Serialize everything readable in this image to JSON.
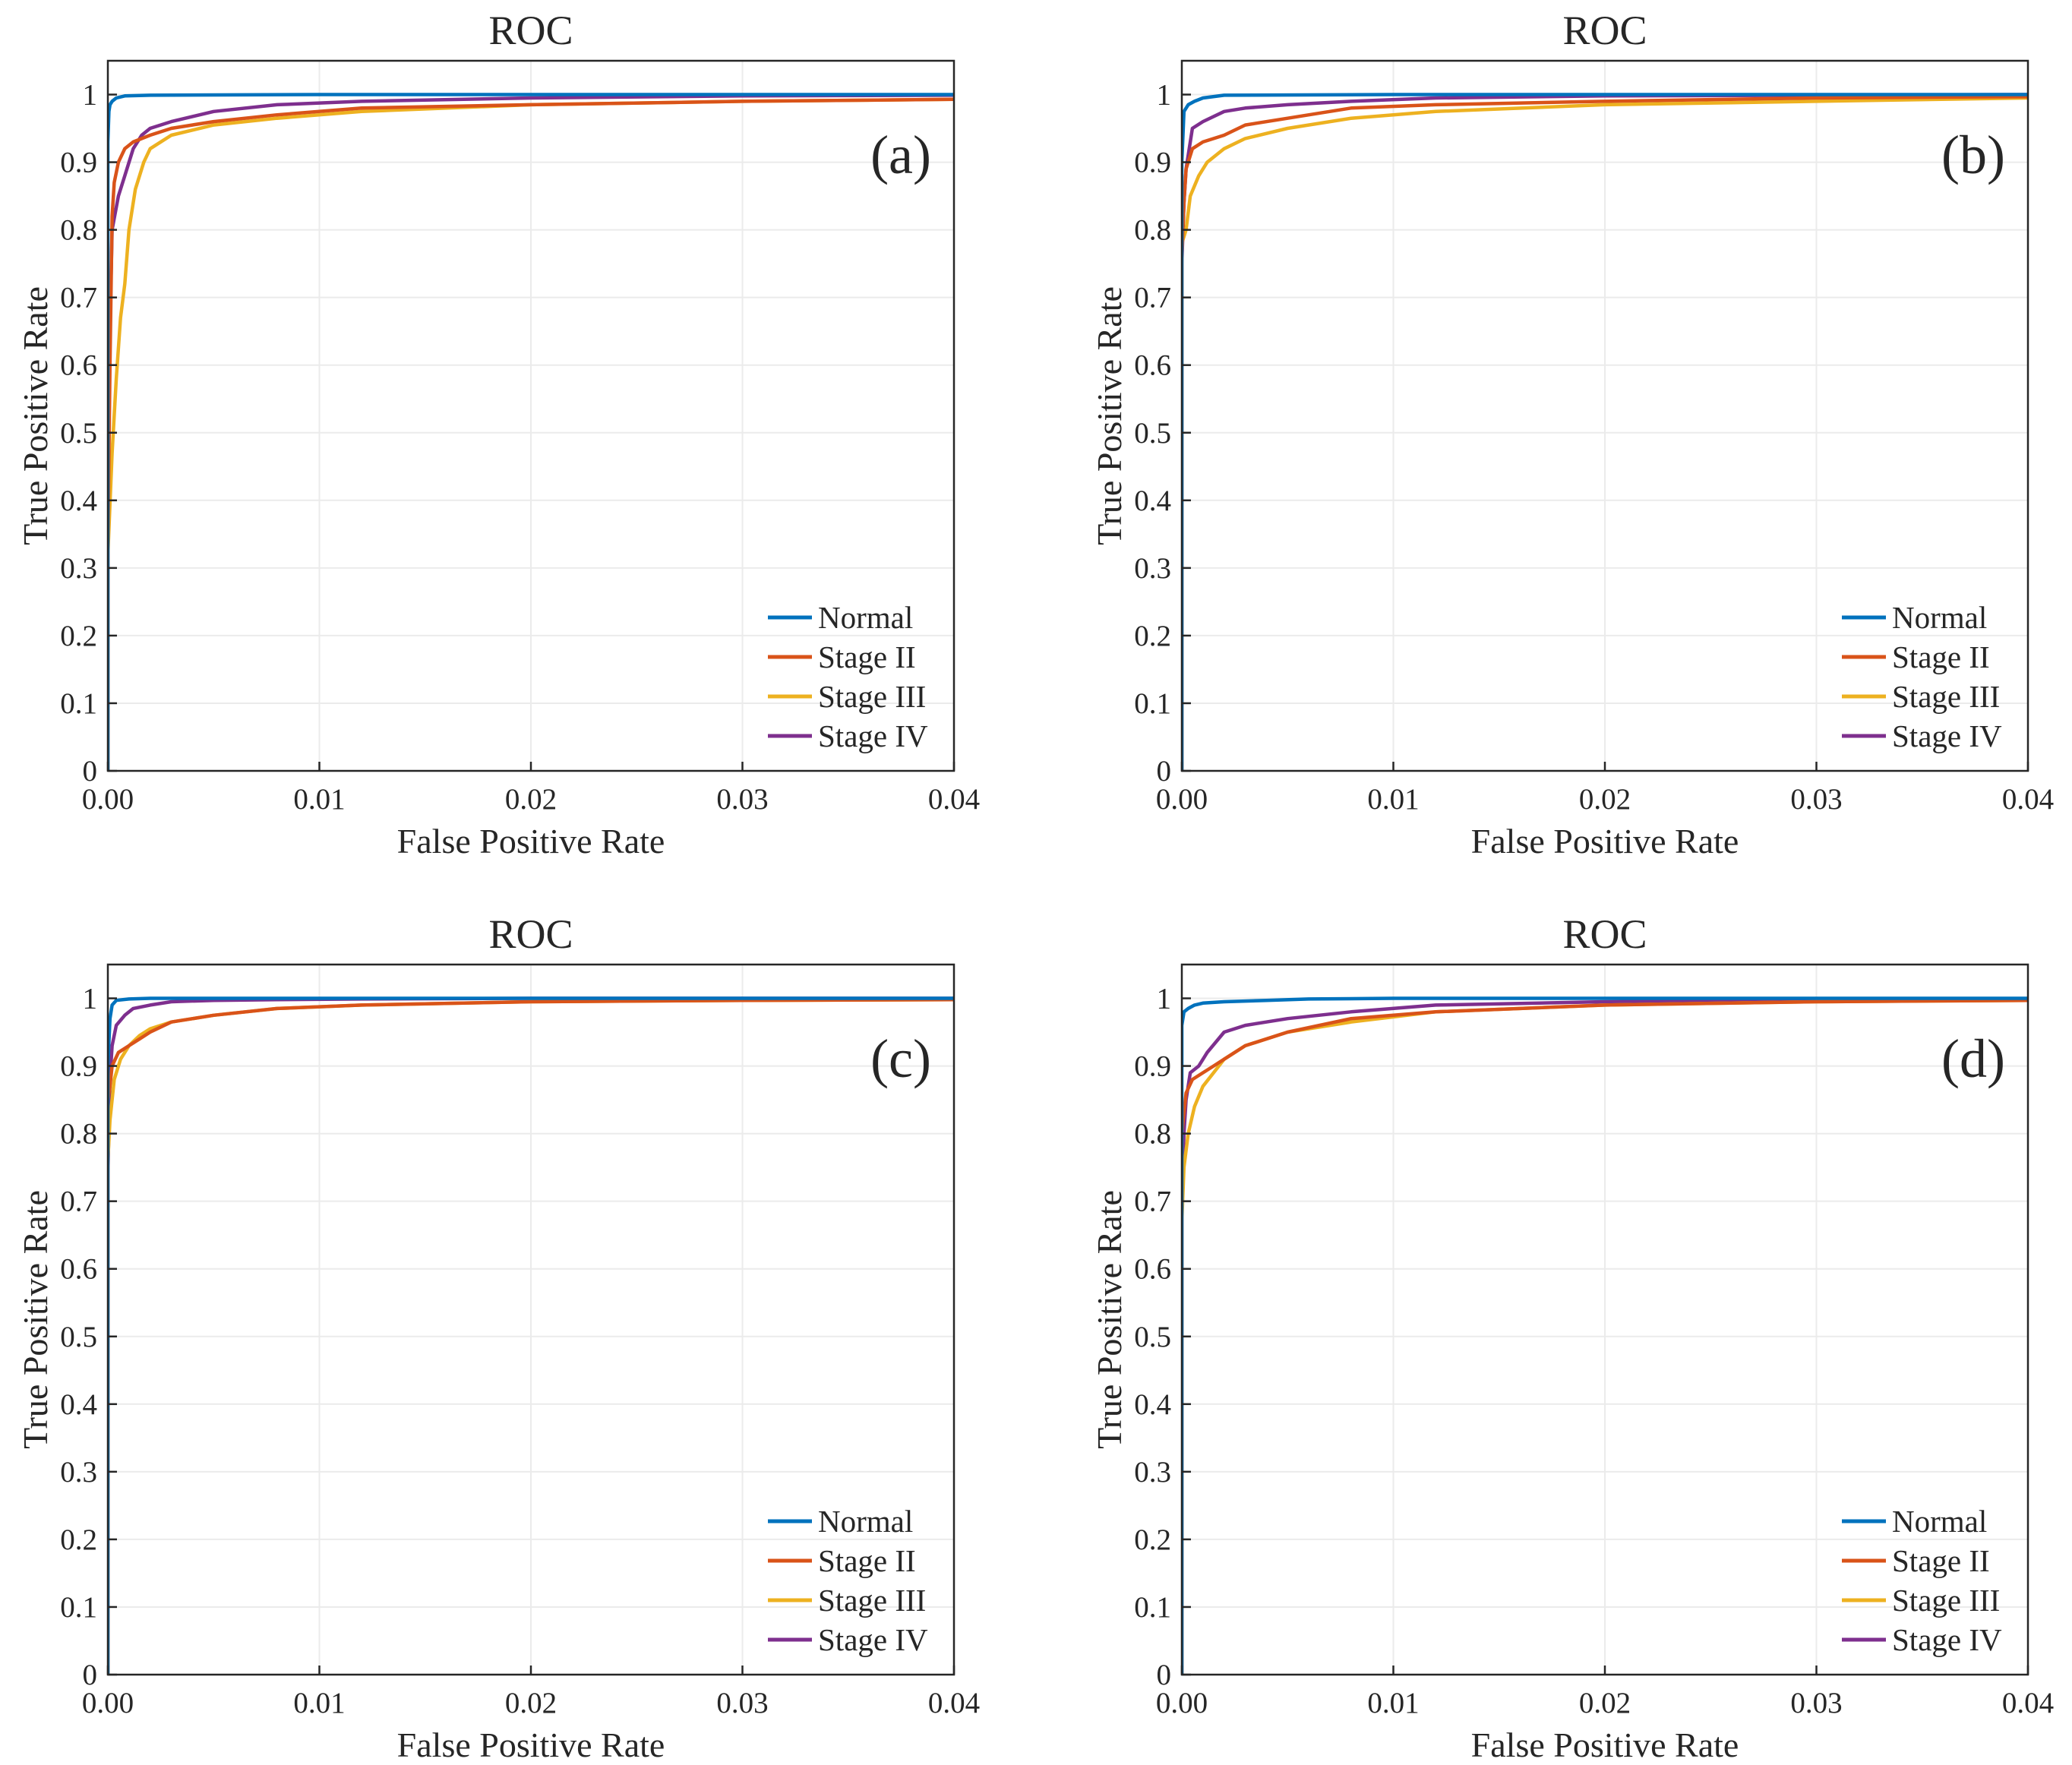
{
  "chart_data": [
    {
      "panel": "(a)",
      "type": "line",
      "title": "ROC",
      "xlabel": "False Positive Rate",
      "ylabel": "True Positive Rate",
      "xlim": [
        0,
        0.04
      ],
      "ylim": [
        0,
        1.05
      ],
      "xticks": [
        0,
        0.01,
        0.02,
        0.03,
        0.04
      ],
      "xtick_labels": [
        "0.00",
        "0.01",
        "0.02",
        "0.03",
        "0.04"
      ],
      "yticks": [
        0,
        0.1,
        0.2,
        0.3,
        0.4,
        0.5,
        0.6,
        0.7,
        0.8,
        0.9,
        1
      ],
      "ytick_labels": [
        "0",
        "0.1",
        "0.2",
        "0.3",
        "0.4",
        "0.5",
        "0.6",
        "0.7",
        "0.8",
        "0.9",
        "1"
      ],
      "grid": true,
      "legend_position": "bottom-right",
      "series": [
        {
          "name": "Normal",
          "color": "#0072BD",
          "x": [
            0,
            0,
            5e-05,
            0.0001,
            0.0002,
            0.0004,
            0.0008,
            0.002,
            0.01,
            0.04
          ],
          "y": [
            0,
            0.93,
            0.975,
            0.985,
            0.99,
            0.995,
            0.998,
            0.999,
            1.0,
            1.0
          ]
        },
        {
          "name": "Stage II",
          "color": "#D95319",
          "x": [
            0,
            0,
            0.0001,
            0.0002,
            0.0003,
            0.0005,
            0.0008,
            0.0012,
            0.002,
            0.003,
            0.005,
            0.008,
            0.012,
            0.02,
            0.03,
            0.04
          ],
          "y": [
            0,
            0.33,
            0.6,
            0.82,
            0.87,
            0.9,
            0.92,
            0.93,
            0.94,
            0.95,
            0.96,
            0.97,
            0.98,
            0.985,
            0.99,
            0.993
          ]
        },
        {
          "name": "Stage III",
          "color": "#EDB120",
          "x": [
            0,
            0,
            0.0002,
            0.0004,
            0.0006,
            0.0008,
            0.001,
            0.0013,
            0.0017,
            0.002,
            0.003,
            0.005,
            0.008,
            0.012,
            0.02,
            0.03,
            0.04
          ],
          "y": [
            0,
            0.32,
            0.47,
            0.58,
            0.67,
            0.72,
            0.8,
            0.86,
            0.9,
            0.92,
            0.94,
            0.955,
            0.965,
            0.975,
            0.985,
            0.99,
            0.993
          ]
        },
        {
          "name": "Stage IV",
          "color": "#7E2F8E",
          "x": [
            0,
            0,
            0.0001,
            0.0002,
            0.0005,
            0.0008,
            0.0012,
            0.0016,
            0.002,
            0.003,
            0.005,
            0.008,
            0.012,
            0.02,
            0.03,
            0.04
          ],
          "y": [
            0,
            0.36,
            0.66,
            0.8,
            0.85,
            0.88,
            0.92,
            0.94,
            0.95,
            0.96,
            0.975,
            0.985,
            0.99,
            0.995,
            0.998,
            0.999
          ]
        }
      ]
    },
    {
      "panel": "(b)",
      "type": "line",
      "title": "ROC",
      "xlabel": "False Positive Rate",
      "ylabel": "True Positive Rate",
      "xlim": [
        0,
        0.04
      ],
      "ylim": [
        0,
        1.05
      ],
      "xticks": [
        0,
        0.01,
        0.02,
        0.03,
        0.04
      ],
      "xtick_labels": [
        "0.00",
        "0.01",
        "0.02",
        "0.03",
        "0.04"
      ],
      "yticks": [
        0,
        0.1,
        0.2,
        0.3,
        0.4,
        0.5,
        0.6,
        0.7,
        0.8,
        0.9,
        1
      ],
      "ytick_labels": [
        "0",
        "0.1",
        "0.2",
        "0.3",
        "0.4",
        "0.5",
        "0.6",
        "0.7",
        "0.8",
        "0.9",
        "1"
      ],
      "grid": true,
      "legend_position": "bottom-right",
      "series": [
        {
          "name": "Normal",
          "color": "#0072BD",
          "x": [
            0,
            0,
            0.0001,
            0.0003,
            0.0006,
            0.001,
            0.002,
            0.01,
            0.04
          ],
          "y": [
            0,
            0.9,
            0.975,
            0.985,
            0.99,
            0.995,
            0.999,
            1.0,
            1.0
          ]
        },
        {
          "name": "Stage II",
          "color": "#D95319",
          "x": [
            0,
            0,
            0.0001,
            0.0002,
            0.0005,
            0.001,
            0.002,
            0.003,
            0.005,
            0.008,
            0.012,
            0.02,
            0.03,
            0.04
          ],
          "y": [
            0,
            0.76,
            0.84,
            0.89,
            0.92,
            0.93,
            0.94,
            0.955,
            0.965,
            0.98,
            0.985,
            0.99,
            0.995,
            0.997
          ]
        },
        {
          "name": "Stage III",
          "color": "#EDB120",
          "x": [
            0,
            0,
            0.0002,
            0.0004,
            0.0008,
            0.0012,
            0.002,
            0.003,
            0.005,
            0.008,
            0.012,
            0.02,
            0.03,
            0.04
          ],
          "y": [
            0,
            0.78,
            0.8,
            0.85,
            0.88,
            0.9,
            0.92,
            0.935,
            0.95,
            0.965,
            0.975,
            0.985,
            0.99,
            0.995
          ]
        },
        {
          "name": "Stage IV",
          "color": "#7E2F8E",
          "x": [
            0,
            0,
            0.0001,
            0.0002,
            0.0005,
            0.001,
            0.002,
            0.003,
            0.005,
            0.008,
            0.012,
            0.02,
            0.03,
            0.04
          ],
          "y": [
            0,
            0.75,
            0.84,
            0.89,
            0.95,
            0.96,
            0.975,
            0.98,
            0.985,
            0.99,
            0.995,
            0.998,
            0.999,
            1.0
          ]
        }
      ]
    },
    {
      "panel": "(c)",
      "type": "line",
      "title": "ROC",
      "xlabel": "False Positive Rate",
      "ylabel": "True Positive Rate",
      "xlim": [
        0,
        0.04
      ],
      "ylim": [
        0,
        1.05
      ],
      "xticks": [
        0,
        0.01,
        0.02,
        0.03,
        0.04
      ],
      "xtick_labels": [
        "0.00",
        "0.01",
        "0.02",
        "0.03",
        "0.04"
      ],
      "yticks": [
        0,
        0.1,
        0.2,
        0.3,
        0.4,
        0.5,
        0.6,
        0.7,
        0.8,
        0.9,
        1
      ],
      "ytick_labels": [
        "0",
        "0.1",
        "0.2",
        "0.3",
        "0.4",
        "0.5",
        "0.6",
        "0.7",
        "0.8",
        "0.9",
        "1"
      ],
      "grid": true,
      "legend_position": "bottom-right",
      "series": [
        {
          "name": "Normal",
          "color": "#0072BD",
          "x": [
            0,
            0,
            0.0001,
            0.0002,
            0.0004,
            0.001,
            0.002,
            0.04
          ],
          "y": [
            0,
            0.9,
            0.97,
            0.99,
            0.997,
            0.999,
            1.0,
            1.0
          ]
        },
        {
          "name": "Stage II",
          "color": "#D95319",
          "x": [
            0,
            0,
            0.0001,
            0.0002,
            0.0005,
            0.001,
            0.0015,
            0.002,
            0.003,
            0.005,
            0.008,
            0.012,
            0.02,
            0.03,
            0.04
          ],
          "y": [
            0,
            0.85,
            0.87,
            0.9,
            0.92,
            0.93,
            0.94,
            0.95,
            0.965,
            0.975,
            0.985,
            0.99,
            0.995,
            0.997,
            0.998
          ]
        },
        {
          "name": "Stage III",
          "color": "#EDB120",
          "x": [
            0,
            0,
            0.0001,
            0.0003,
            0.0006,
            0.001,
            0.0015,
            0.002,
            0.003,
            0.005,
            0.008,
            0.012,
            0.02,
            0.03,
            0.04
          ],
          "y": [
            0,
            0.76,
            0.82,
            0.88,
            0.91,
            0.93,
            0.945,
            0.955,
            0.965,
            0.975,
            0.985,
            0.99,
            0.995,
            0.997,
            0.998
          ]
        },
        {
          "name": "Stage IV",
          "color": "#7E2F8E",
          "x": [
            0,
            0,
            0.0001,
            0.0002,
            0.0004,
            0.0008,
            0.0012,
            0.002,
            0.003,
            0.005,
            0.008,
            0.012,
            0.02,
            0.04
          ],
          "y": [
            0,
            0.74,
            0.88,
            0.93,
            0.96,
            0.975,
            0.985,
            0.99,
            0.995,
            0.997,
            0.998,
            0.999,
            1.0,
            1.0
          ]
        }
      ]
    },
    {
      "panel": "(d)",
      "type": "line",
      "title": "ROC",
      "xlabel": "False Positive Rate",
      "ylabel": "True Positive Rate",
      "xlim": [
        0,
        0.04
      ],
      "ylim": [
        0,
        1.05
      ],
      "xticks": [
        0,
        0.01,
        0.02,
        0.03,
        0.04
      ],
      "xtick_labels": [
        "0.00",
        "0.01",
        "0.02",
        "0.03",
        "0.04"
      ],
      "yticks": [
        0,
        0.1,
        0.2,
        0.3,
        0.4,
        0.5,
        0.6,
        0.7,
        0.8,
        0.9,
        1
      ],
      "ytick_labels": [
        "0",
        "0.1",
        "0.2",
        "0.3",
        "0.4",
        "0.5",
        "0.6",
        "0.7",
        "0.8",
        "0.9",
        "1"
      ],
      "grid": true,
      "legend_position": "bottom-right",
      "series": [
        {
          "name": "Normal",
          "color": "#0072BD",
          "x": [
            0,
            0,
            0.0001,
            0.0003,
            0.0006,
            0.001,
            0.002,
            0.004,
            0.006,
            0.01,
            0.04
          ],
          "y": [
            0,
            0.96,
            0.98,
            0.985,
            0.99,
            0.993,
            0.995,
            0.997,
            0.999,
            1.0,
            1.0
          ]
        },
        {
          "name": "Stage II",
          "color": "#D95319",
          "x": [
            0,
            0,
            0.0001,
            0.0002,
            0.0005,
            0.001,
            0.0015,
            0.002,
            0.003,
            0.005,
            0.008,
            0.012,
            0.02,
            0.03,
            0.04
          ],
          "y": [
            0,
            0.8,
            0.83,
            0.86,
            0.88,
            0.89,
            0.9,
            0.91,
            0.93,
            0.95,
            0.97,
            0.98,
            0.99,
            0.995,
            0.997
          ]
        },
        {
          "name": "Stage III",
          "color": "#EDB120",
          "x": [
            0,
            0,
            0.0001,
            0.0003,
            0.0006,
            0.001,
            0.0015,
            0.002,
            0.003,
            0.005,
            0.008,
            0.012,
            0.02,
            0.03,
            0.04
          ],
          "y": [
            0,
            0.67,
            0.75,
            0.8,
            0.84,
            0.87,
            0.89,
            0.91,
            0.93,
            0.95,
            0.965,
            0.98,
            0.99,
            0.995,
            0.997
          ]
        },
        {
          "name": "Stage IV",
          "color": "#7E2F8E",
          "x": [
            0,
            0,
            0.0001,
            0.0002,
            0.0004,
            0.0008,
            0.0012,
            0.002,
            0.003,
            0.005,
            0.008,
            0.012,
            0.02,
            0.03,
            0.04
          ],
          "y": [
            0,
            0.7,
            0.8,
            0.85,
            0.89,
            0.9,
            0.92,
            0.95,
            0.96,
            0.97,
            0.98,
            0.99,
            0.995,
            0.998,
            0.999
          ]
        }
      ]
    }
  ]
}
